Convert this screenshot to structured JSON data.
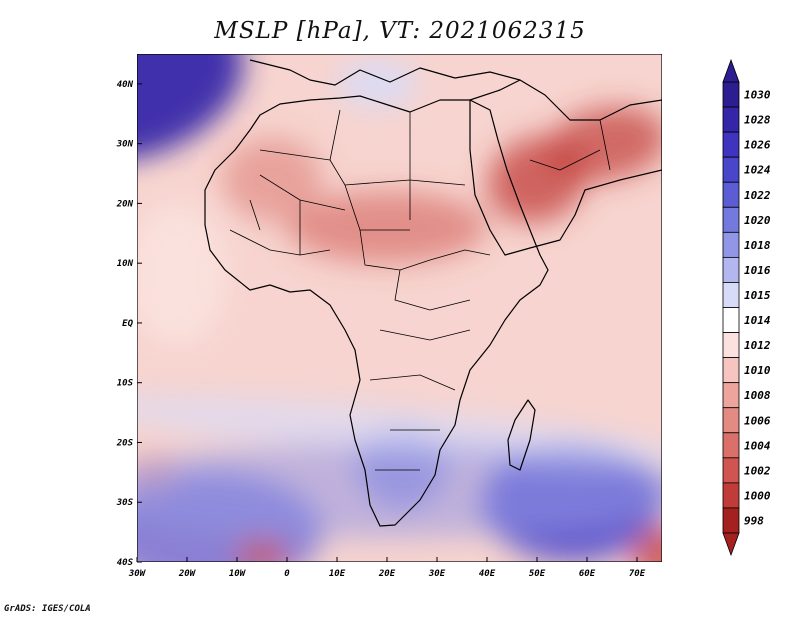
{
  "title": "MSLP [hPa], VT: 2021062315",
  "credit": "GrADS: IGES/COLA",
  "map": {
    "variable": "MSLP",
    "units": "hPa",
    "valid_time": "2021062315",
    "lon_range": [
      -30,
      75
    ],
    "lat_range": [
      -40,
      45
    ],
    "lon_ticks": [
      {
        "value": -30,
        "label": "30W"
      },
      {
        "value": -20,
        "label": "20W"
      },
      {
        "value": -10,
        "label": "10W"
      },
      {
        "value": 0,
        "label": "0"
      },
      {
        "value": 10,
        "label": "10E"
      },
      {
        "value": 20,
        "label": "20E"
      },
      {
        "value": 30,
        "label": "30E"
      },
      {
        "value": 40,
        "label": "40E"
      },
      {
        "value": 50,
        "label": "50E"
      },
      {
        "value": 60,
        "label": "60E"
      },
      {
        "value": 70,
        "label": "70E"
      }
    ],
    "lat_ticks": [
      {
        "value": 40,
        "label": "40N"
      },
      {
        "value": 30,
        "label": "30N"
      },
      {
        "value": 20,
        "label": "20N"
      },
      {
        "value": 10,
        "label": "10N"
      },
      {
        "value": 0,
        "label": "EQ"
      },
      {
        "value": -10,
        "label": "10S"
      },
      {
        "value": -20,
        "label": "20S"
      },
      {
        "value": -30,
        "label": "30S"
      },
      {
        "value": -40,
        "label": "40S"
      }
    ],
    "background_color": "#f7d4cf"
  },
  "colorbar": {
    "levels": [
      {
        "label": "1030",
        "color": "#2c1d91"
      },
      {
        "label": "1028",
        "color": "#3526a9"
      },
      {
        "label": "1026",
        "color": "#3e34bf"
      },
      {
        "label": "1024",
        "color": "#4a46cc"
      },
      {
        "label": "1022",
        "color": "#5c5dd5"
      },
      {
        "label": "1020",
        "color": "#7479dd"
      },
      {
        "label": "1018",
        "color": "#9196e6"
      },
      {
        "label": "1016",
        "color": "#b2b7ef"
      },
      {
        "label": "1015",
        "color": "#d8dbf7"
      },
      {
        "label": "1014",
        "color": "#ffffff"
      },
      {
        "label": "1012",
        "color": "#fbe2de"
      },
      {
        "label": "1010",
        "color": "#f6c5bf"
      },
      {
        "label": "1008",
        "color": "#eda49d"
      },
      {
        "label": "1006",
        "color": "#e38a82"
      },
      {
        "label": "1004",
        "color": "#da7069"
      },
      {
        "label": "1002",
        "color": "#d05550"
      },
      {
        "label": "1000",
        "color": "#c13c38"
      },
      {
        "label": "998",
        "color": "#a5211f"
      }
    ]
  },
  "fields": [
    {
      "name": "high-north-atlantic",
      "lon": -30,
      "lat": 40,
      "rx": 22,
      "ry": 12,
      "rot": -20,
      "color": "#3526a9",
      "opacity": 0.95
    },
    {
      "name": "high-south-indian",
      "lon": 57,
      "lat": -30,
      "rx": 18,
      "ry": 10,
      "rot": 0,
      "color": "#4a46cc",
      "opacity": 0.85
    },
    {
      "name": "high-south-atlantic",
      "lon": -15,
      "lat": -35,
      "rx": 22,
      "ry": 10,
      "rot": 0,
      "color": "#5c5dd5",
      "opacity": 0.7
    },
    {
      "name": "high-southern-africa",
      "lon": 23,
      "lat": -24,
      "rx": 9,
      "ry": 7,
      "rot": 0,
      "color": "#7479dd",
      "opacity": 0.65
    },
    {
      "name": "low-arabia",
      "lon": 50,
      "lat": 24,
      "rx": 10,
      "ry": 7,
      "rot": -20,
      "color": "#c13c38",
      "opacity": 0.75
    },
    {
      "name": "low-pakistan-iran",
      "lon": 64,
      "lat": 30,
      "rx": 12,
      "ry": 6,
      "rot": -10,
      "color": "#c13c38",
      "opacity": 0.7
    },
    {
      "name": "low-sahel",
      "lon": 20,
      "lat": 16,
      "rx": 20,
      "ry": 6,
      "rot": 0,
      "color": "#d05550",
      "opacity": 0.55
    },
    {
      "name": "low-sahara-west",
      "lon": -3,
      "lat": 24,
      "rx": 10,
      "ry": 7,
      "rot": 0,
      "color": "#da7069",
      "opacity": 0.5
    },
    {
      "name": "low-southeast-corner",
      "lon": 75,
      "lat": -39,
      "rx": 6,
      "ry": 5,
      "rot": 0,
      "color": "#c13c38",
      "opacity": 0.75
    },
    {
      "name": "low-south-atlantic-small",
      "lon": -5,
      "lat": -39,
      "rx": 5,
      "ry": 3,
      "rot": 0,
      "color": "#d05550",
      "opacity": 0.7
    },
    {
      "name": "low-west-south-atlantic",
      "lon": -27,
      "lat": -25,
      "rx": 5,
      "ry": 3,
      "rot": 0,
      "color": "#eda49d",
      "opacity": 0.9
    },
    {
      "name": "ridge-mediterranean",
      "lon": 18,
      "lat": 40,
      "rx": 8,
      "ry": 4,
      "rot": 0,
      "color": "#d8dbf7",
      "opacity": 0.9
    },
    {
      "name": "ridge-west-africa-coast",
      "lon": -22,
      "lat": 8,
      "rx": 10,
      "ry": 12,
      "rot": 0,
      "color": "#fbe2de",
      "opacity": 0.9
    },
    {
      "name": "band-south-midlat",
      "lon": 20,
      "lat": -18,
      "rx": 60,
      "ry": 4,
      "rot": 5,
      "color": "#d8dbf7",
      "opacity": 0.7
    },
    {
      "name": "band-south-subtropics",
      "lon": 20,
      "lat": -28,
      "rx": 62,
      "ry": 8,
      "rot": 0,
      "color": "#9196e6",
      "opacity": 0.55
    }
  ]
}
